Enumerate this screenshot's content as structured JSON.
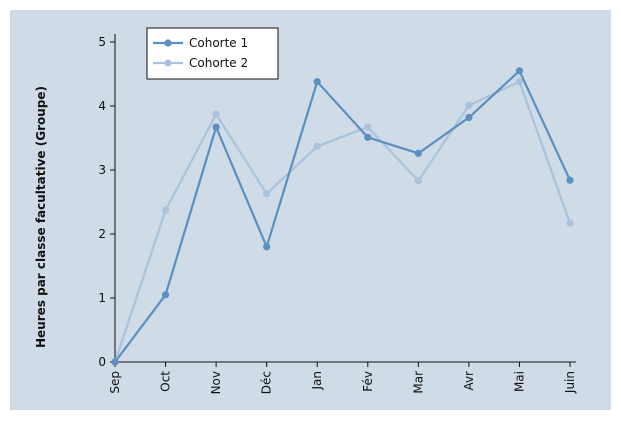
{
  "chart_data": {
    "type": "line",
    "title": "",
    "xlabel": "",
    "ylabel": "Heures par classe facultative (Groupe)",
    "categories": [
      "Sep",
      "Oct",
      "Nov",
      "Déc",
      "Jan",
      "Fév",
      "Mar",
      "Avr",
      "Mai",
      "Juin"
    ],
    "ylim": [
      0,
      5
    ],
    "yticks": [
      0,
      1,
      2,
      3,
      4,
      5
    ],
    "grid": false,
    "legend_position": "top-left",
    "series": [
      {
        "name": "Cohorte 1",
        "color": "#5b8fc0",
        "values": [
          0,
          1.05,
          3.67,
          1.8,
          4.38,
          3.51,
          3.26,
          3.82,
          4.55,
          2.84
        ]
      },
      {
        "name": "Cohorte 2",
        "color": "#a9c3dc",
        "values": [
          0,
          2.37,
          3.87,
          2.63,
          3.37,
          3.67,
          2.83,
          4.01,
          4.38,
          2.17
        ]
      }
    ]
  }
}
